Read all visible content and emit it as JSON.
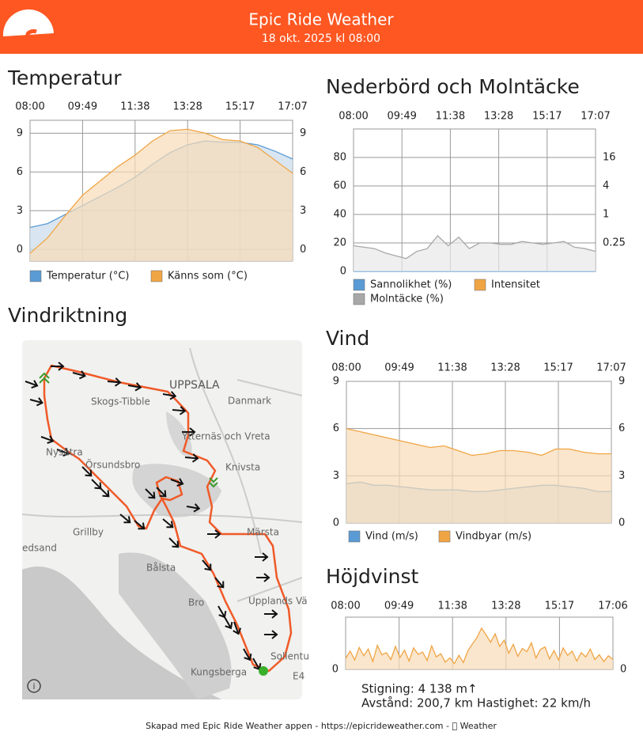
{
  "header": {
    "title": "Epic Ride Weather",
    "subtitle": "18 okt. 2025 kl 08:00"
  },
  "chart_data": [
    {
      "type": "area",
      "title": "Temperatur",
      "xticks": [
        "08:00",
        "09:49",
        "11:38",
        "13:28",
        "15:17",
        "17:07"
      ],
      "ylim": [
        -0.9,
        10
      ],
      "yticks": [
        0,
        3,
        6,
        9
      ],
      "y2lim": [
        -0.9,
        10
      ],
      "y2ticks": [
        0,
        3,
        6,
        9
      ],
      "grid": true,
      "series": [
        {
          "name": "Temperatur (°C)",
          "color": "#5b9bd5",
          "values": [
            1.7,
            2.0,
            2.7,
            3.4,
            4.1,
            4.8,
            5.6,
            6.6,
            7.5,
            8.1,
            8.4,
            8.3,
            8.3,
            8.1,
            7.6,
            7.0
          ]
        },
        {
          "name": "Känns som (°C)",
          "color": "#f0a545",
          "values": [
            -0.3,
            0.9,
            2.6,
            4.2,
            5.3,
            6.4,
            7.3,
            8.4,
            9.2,
            9.3,
            9.0,
            8.5,
            8.4,
            7.9,
            6.9,
            5.9
          ]
        }
      ]
    },
    {
      "type": "area",
      "title": "Nederbörd och Molntäcke",
      "xticks": [
        "08:00",
        "09:49",
        "11:38",
        "13:28",
        "15:17",
        "17:07"
      ],
      "ylim": [
        0,
        100
      ],
      "yticks": [
        0,
        20,
        40,
        60,
        80
      ],
      "y2lim": [
        0.0625,
        64
      ],
      "y2log": true,
      "y2ticks": [
        0.25,
        1,
        4,
        16
      ],
      "grid": true,
      "series": [
        {
          "name": "Sannolikhet (%)",
          "color": "#5b9bd5",
          "values": [
            0,
            0,
            0,
            0,
            0,
            0,
            0,
            0,
            0,
            0,
            0,
            0,
            0,
            0,
            0,
            0,
            0,
            0,
            0,
            0,
            0,
            0,
            0,
            0
          ]
        },
        {
          "name": "Intensitet",
          "color": "#f0a545",
          "axis": "y2",
          "values": [
            null,
            null,
            null,
            null,
            null,
            null,
            null,
            null,
            null,
            null,
            null,
            null,
            null,
            null,
            null,
            null,
            null,
            null,
            null,
            null,
            null,
            null,
            null,
            null
          ]
        },
        {
          "name": "Molntäcke (%)",
          "color": "#a8a8a8",
          "values": [
            18,
            17,
            16,
            13,
            11,
            9,
            14,
            16,
            25,
            18,
            24,
            16,
            20,
            20,
            19,
            19,
            21,
            20,
            19,
            20,
            21,
            17,
            16,
            14
          ]
        }
      ]
    },
    {
      "type": "area",
      "title": "Vind",
      "xticks": [
        "08:00",
        "09:49",
        "11:38",
        "13:28",
        "15:17",
        "17:07"
      ],
      "ylim": [
        0,
        9
      ],
      "yticks": [
        0,
        3,
        6,
        9
      ],
      "y2lim": [
        0,
        9
      ],
      "y2ticks": [
        0,
        3,
        6,
        9
      ],
      "grid": true,
      "series": [
        {
          "name": "Vind (m/s)",
          "color": "#5b9bd5",
          "values": [
            2.5,
            2.6,
            2.4,
            2.4,
            2.3,
            2.2,
            2.1,
            2.1,
            2.1,
            2.0,
            2.0,
            2.1,
            2.2,
            2.3,
            2.4,
            2.4,
            2.3,
            2.2,
            2.0,
            2.0
          ]
        },
        {
          "name": "Vindbyar (m/s)",
          "color": "#f0a545",
          "values": [
            6.0,
            5.8,
            5.6,
            5.4,
            5.2,
            5.0,
            4.8,
            4.9,
            4.6,
            4.3,
            4.4,
            4.6,
            4.6,
            4.5,
            4.3,
            4.7,
            4.7,
            4.5,
            4.4,
            4.4
          ]
        }
      ]
    },
    {
      "type": "area",
      "title": "Höjdvinst",
      "xticks": [
        "08:00",
        "09:49",
        "11:38",
        "13:28",
        "15:17",
        "17:06"
      ],
      "ylim": [
        0,
        10
      ],
      "yticks": [
        0
      ],
      "y2lim": [
        0,
        10
      ],
      "y2ticks": [
        0
      ],
      "grid": true,
      "series": [
        {
          "color": "#f0a545",
          "values": [
            2.1,
            3.5,
            1.8,
            4.2,
            2.6,
            3.9,
            1.5,
            4.6,
            2.8,
            3.2,
            1.9,
            4.4,
            2.3,
            3.7,
            1.6,
            4.1,
            2.9,
            3.3,
            1.7,
            4.5,
            2.4,
            3.0,
            1.4,
            2.2,
            1.1,
            2.7,
            1.3,
            3.6,
            4.9,
            6.1,
            7.9,
            6.6,
            5.2,
            6.8,
            4.4,
            5.6,
            3.1,
            4.8,
            2.5,
            4.0,
            3.4,
            5.1,
            2.2,
            3.8,
            4.3,
            2.0,
            3.6,
            1.8,
            4.1,
            2.7,
            3.5,
            1.6,
            3.2,
            2.4,
            3.9,
            1.9,
            2.8,
            1.5,
            2.6,
            1.9
          ]
        }
      ]
    }
  ],
  "map": {
    "title": "Vindriktning",
    "labels": [
      "UPPSALA",
      "Skogs-Tibble",
      "Danmark",
      "Ytternäs och Vreta",
      "Knivsta",
      "Nysätra",
      "Örsundsbro",
      "Grillby",
      "Märsta",
      "edsand",
      "Bålsta",
      "Upplands Vä",
      "Bro",
      "Sollentu",
      "Kungsberga",
      "E4"
    ]
  },
  "stats": {
    "climb": "Stigning: 4 138 m↑",
    "distance": "Avstånd: 200,7 km",
    "speed": "Hastighet: 22 km/h"
  },
  "footer": "Skapad med Epic Ride Weather appen - https://epicrideweather.com -  Weather"
}
